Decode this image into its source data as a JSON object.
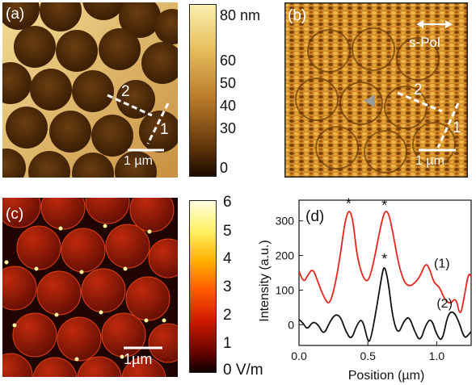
{
  "panels": {
    "a": {
      "label": "(a)",
      "scalebar": "1 µm",
      "line1": "1",
      "line2": "2",
      "colorbar": {
        "unit_label": "80 nm",
        "ticks": [
          "60",
          "50",
          "40",
          "30",
          "0"
        ]
      }
    },
    "b": {
      "label": "(b)",
      "scalebar": "1 µm",
      "line1": "1",
      "line2": "2",
      "polarization": "s-Pol"
    },
    "c": {
      "label": "(c)",
      "scalebar": "1µm",
      "colorbar": {
        "ticks": [
          "6",
          "5",
          "4",
          "3",
          "2",
          "1"
        ],
        "bottom_label": "0 V/m"
      }
    }
  },
  "colors": {
    "afm_dark": "#4a2a08",
    "afm_light": "#f0d890",
    "field_bg": "#9a1a08",
    "line_1": "#e8261c",
    "line_2": "#111111"
  },
  "chart_data": {
    "type": "line",
    "label": "(d)",
    "xlabel": "Position (µm)",
    "ylabel": "Intensity (a.u.)",
    "xlim": [
      0.0,
      1.25
    ],
    "ylim": [
      -60,
      360
    ],
    "xticks": [
      "0.0",
      "0.5",
      "1.0"
    ],
    "xtick_values": [
      0.0,
      0.5,
      1.0
    ],
    "yticks": [
      "0",
      "100",
      "200",
      "300"
    ],
    "ytick_values": [
      0,
      100,
      200,
      300
    ],
    "series": [
      {
        "name": "(1)",
        "color": "#e8261c",
        "x": [
          0.0,
          0.03,
          0.06,
          0.1,
          0.14,
          0.18,
          0.22,
          0.26,
          0.3,
          0.33,
          0.36,
          0.39,
          0.42,
          0.46,
          0.5,
          0.54,
          0.58,
          0.62,
          0.65,
          0.68,
          0.72,
          0.76,
          0.8,
          0.84,
          0.88,
          0.92,
          0.95,
          0.98,
          1.02,
          1.06,
          1.1,
          1.14,
          1.17,
          1.2,
          1.23,
          1.25
        ],
        "y": [
          155,
          120,
          140,
          165,
          120,
          80,
          55,
          110,
          200,
          290,
          335,
          310,
          200,
          140,
          120,
          175,
          260,
          330,
          325,
          270,
          180,
          125,
          110,
          120,
          140,
          180,
          160,
          120,
          110,
          70,
          60,
          80,
          20,
          80,
          150,
          140
        ]
      },
      {
        "name": "(2)",
        "color": "#111111",
        "x": [
          0.0,
          0.03,
          0.06,
          0.1,
          0.14,
          0.18,
          0.22,
          0.26,
          0.3,
          0.34,
          0.38,
          0.42,
          0.46,
          0.5,
          0.52,
          0.56,
          0.6,
          0.62,
          0.65,
          0.68,
          0.72,
          0.76,
          0.8,
          0.84,
          0.88,
          0.92,
          0.96,
          1.0,
          1.04,
          1.08,
          1.12,
          1.16,
          1.2,
          1.23,
          1.25
        ],
        "y": [
          15,
          5,
          -15,
          10,
          0,
          -30,
          5,
          30,
          25,
          -20,
          -45,
          0,
          20,
          -50,
          -45,
          40,
          140,
          175,
          120,
          20,
          -30,
          10,
          25,
          -20,
          -50,
          0,
          20,
          -30,
          -50,
          30,
          40,
          10,
          -40,
          -30,
          -20
        ]
      }
    ],
    "annotations": [
      {
        "text": "*",
        "x": 0.36,
        "y": 340
      },
      {
        "text": "*",
        "x": 0.62,
        "y": 335
      },
      {
        "text": "*",
        "x": 0.62,
        "y": 180
      }
    ],
    "legend": [
      "(1)",
      "(2)"
    ]
  }
}
